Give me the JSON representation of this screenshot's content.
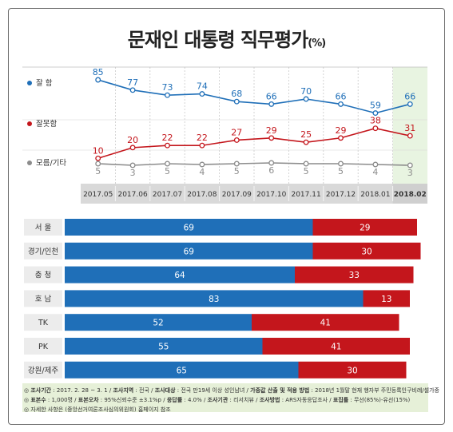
{
  "title": "문재인 대통령 직무평가",
  "title_unit": "(%)",
  "chart_data": [
    {
      "type": "line",
      "categories": [
        "2017.05",
        "2017.06",
        "2017.07",
        "2017.08",
        "2017.09",
        "2017.10",
        "2017.11",
        "2017.12",
        "2018.01",
        "2018.02"
      ],
      "series": [
        {
          "name": "잘 함",
          "color": "#1f6fb8",
          "values": [
            85,
            77,
            73,
            74,
            68,
            66,
            70,
            66,
            59,
            66
          ]
        },
        {
          "name": "잘못함",
          "color": "#c4161c",
          "values": [
            10,
            20,
            22,
            22,
            27,
            29,
            25,
            29,
            38,
            31
          ]
        },
        {
          "name": "모름/기타",
          "color": "#8c8c8c",
          "values": [
            5,
            3,
            5,
            4,
            5,
            6,
            5,
            5,
            4,
            3
          ]
        }
      ],
      "highlight_category": "2018.02"
    },
    {
      "type": "bar",
      "stacked": true,
      "orientation": "horizontal",
      "categories": [
        "서 울",
        "경기/인천",
        "충 청",
        "호 남",
        "TK",
        "PK",
        "강원/제주"
      ],
      "series": [
        {
          "name": "잘 함",
          "color": "#1f6fb8",
          "values": [
            69,
            69,
            64,
            83,
            52,
            55,
            65
          ]
        },
        {
          "name": "잘못함",
          "color": "#c4161c",
          "values": [
            29,
            30,
            33,
            13,
            41,
            41,
            30
          ]
        }
      ]
    }
  ],
  "footer": {
    "line1": [
      {
        "k": "조사기간",
        "v": " : 2017. 2. 28 ~ 3. 1 / "
      },
      {
        "k": "조사지역",
        "v": " : 전국 / "
      },
      {
        "k": "조사대상",
        "v": " : 전국 만19세 이상 성인남녀 / "
      },
      {
        "k": "가중값 산출 및 적용 방법",
        "v": " : 2018년 1월말 현재 행자부 주민등록인구비례/셀가중"
      }
    ],
    "line2": [
      {
        "k": "표본수",
        "v": " : 1,000명 / "
      },
      {
        "k": "표본오차",
        "v": " : 95%신뢰수준 ±3.1%p / "
      },
      {
        "k": "응답률",
        "v": " : 4.0% / "
      },
      {
        "k": "조사기관",
        "v": " : 리서치뷰 / "
      },
      {
        "k": "조사방법",
        "v": " : ARS자동응답조사 / "
      },
      {
        "k": "표집틀",
        "v": " : 무선(85%)-유선(15%)"
      }
    ],
    "line3": "자세한 사항은 (중앙선거여론조사심의위원회) 홈페이지 참조",
    "bullet": "◎"
  }
}
